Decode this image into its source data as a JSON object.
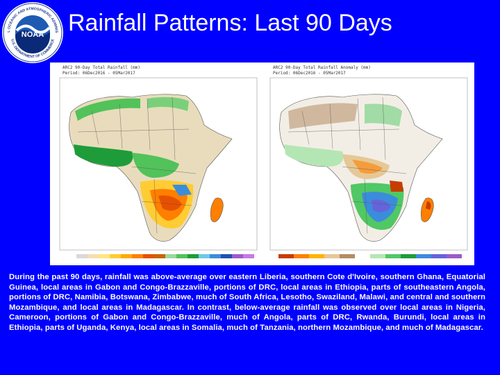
{
  "logo": {
    "center_text": "NOAA",
    "ring_text": "NATIONAL OCEANIC AND ATMOSPHERIC ADMINISTRATION",
    "ring_text_bottom": "U.S. DEPARTMENT OF COMMERCE"
  },
  "title": "Rainfall Patterns: Last 90 Days",
  "maps": [
    {
      "header_line1": "ARC2 90-Day Total Rainfall (mm)",
      "header_line2": "Period: 06Dec2016 - 05Mar2017",
      "legend_ticks": [
        "0",
        "10",
        "25",
        "50",
        "75",
        "100",
        "150",
        "200",
        "300",
        "500",
        "750",
        "1000",
        "1500",
        "2000",
        "3000",
        "4000",
        "5000"
      ],
      "legend_colors": [
        "#ffffff",
        "#d9d9d9",
        "#f5deb3",
        "#ffe680",
        "#ffcc33",
        "#ffaa00",
        "#ff7f00",
        "#e65000",
        "#c86400",
        "#9bd89b",
        "#52c25a",
        "#1e9c3a",
        "#70c8e6",
        "#3c8cdc",
        "#1e50b4",
        "#9b5cc8",
        "#c878e6"
      ]
    },
    {
      "header_line1": "ARC2 90-Day Total Rainfall Anomaly (mm)",
      "header_line2": "Period: 06Dec2016 - 05Mar2017",
      "legend_ticks": [
        "-400",
        "-300",
        "-200",
        "-100",
        "-50",
        "-25",
        "25",
        "50",
        "100",
        "200",
        "300",
        "400"
      ],
      "legend_colors": [
        "#c83c00",
        "#ff7f00",
        "#ffb400",
        "#e6c896",
        "#b48c64",
        "#ffffff",
        "#b4e6b4",
        "#50c864",
        "#1e9b3c",
        "#3c8cdc",
        "#6464dc",
        "#9b5cc8"
      ]
    }
  ],
  "caption": "During the past 90 days, rainfall was above-average over eastern Liberia, southern Cote d'Ivoire, southern Ghana, Equatorial Guinea, local areas in Gabon and Congo-Brazzaville, portions of DRC, local areas in Ethiopia, parts of southeastern Angola, portions of DRC, Namibia, Botswana, Zimbabwe, much of South Africa, Lesotho, Swaziland, Malawi, and central and southern Mozambique, and local areas in Madagascar. In contrast, below-average rainfall was observed over local areas in Nigeria, Cameroon, portions of Gabon and Congo-Brazzaville, much of Angola, parts of DRC, Rwanda, Burundi, local areas in Ethiopia, parts of Uganda, Kenya, local areas in Somalia, much of Tanzania, northern Mozambique, and much of Madagascar."
}
